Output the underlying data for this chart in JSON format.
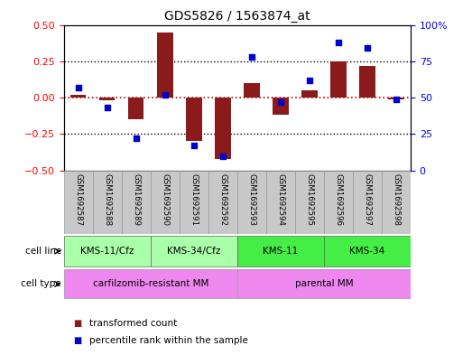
{
  "title": "GDS5826 / 1563874_at",
  "samples": [
    "GSM1692587",
    "GSM1692588",
    "GSM1692589",
    "GSM1692590",
    "GSM1692591",
    "GSM1692592",
    "GSM1692593",
    "GSM1692594",
    "GSM1692595",
    "GSM1692596",
    "GSM1692597",
    "GSM1692598"
  ],
  "transformed_count": [
    0.02,
    -0.02,
    -0.15,
    0.45,
    -0.3,
    -0.42,
    0.1,
    -0.12,
    0.05,
    0.25,
    0.22,
    -0.01
  ],
  "percentile_rank": [
    57,
    43,
    22,
    52,
    17,
    10,
    78,
    47,
    62,
    88,
    84,
    49
  ],
  "bar_color": "#8B1A1A",
  "dot_color": "#0000CC",
  "zero_line_color": "#CC0000",
  "dotted_line_color": "#000000",
  "cell_lines": [
    {
      "label": "KMS-11/Cfz",
      "start": 0,
      "end": 3,
      "color": "#AAFFAA"
    },
    {
      "label": "KMS-34/Cfz",
      "start": 3,
      "end": 6,
      "color": "#AAFFAA"
    },
    {
      "label": "KMS-11",
      "start": 6,
      "end": 9,
      "color": "#44EE44"
    },
    {
      "label": "KMS-34",
      "start": 9,
      "end": 12,
      "color": "#44EE44"
    }
  ],
  "cell_types": [
    {
      "label": "carfilzomib-resistant MM",
      "start": 0,
      "end": 6,
      "color": "#EE88EE"
    },
    {
      "label": "parental MM",
      "start": 6,
      "end": 12,
      "color": "#EE88EE"
    }
  ],
  "ylim": [
    -0.5,
    0.5
  ],
  "y2lim": [
    0,
    100
  ],
  "yticks": [
    -0.5,
    -0.25,
    0.0,
    0.25,
    0.5
  ],
  "y2ticks": [
    0,
    25,
    50,
    75,
    100
  ],
  "hline_values": [
    0.25,
    0.0,
    -0.25
  ],
  "legend_items": [
    {
      "label": "transformed count",
      "color": "#8B1A1A"
    },
    {
      "label": "percentile rank within the sample",
      "color": "#0000CC"
    }
  ],
  "cell_line_label": "cell line",
  "cell_type_label": "cell type",
  "bar_width": 0.55,
  "sample_box_color": "#C8C8C8",
  "fig_bg": "#FFFFFF"
}
